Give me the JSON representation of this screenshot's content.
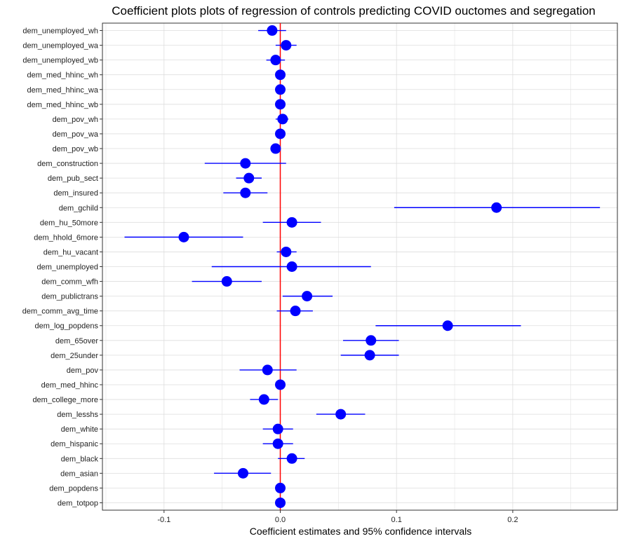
{
  "chart_data": {
    "type": "scatter",
    "title": "Coefficient plots plots of regression of controls predicting COVID ouctomes and segregation",
    "xlabel": "Coefficient estimates and 95% confidence intervals",
    "ylabel": "",
    "xlim": [
      -0.153,
      0.29
    ],
    "x_ticks": [
      -0.1,
      0.0,
      0.1,
      0.2
    ],
    "x_tick_labels": [
      "-0.1",
      "0.0",
      "0.1",
      "0.2"
    ],
    "reference_line": {
      "x": 0,
      "color": "#ff0000"
    },
    "grid": true,
    "colors": {
      "point": "#0000ff",
      "interval": "#0000ff",
      "reference": "#ff0000",
      "grid": "#dddddd",
      "border": "#333333"
    },
    "categories": [
      "dem_unemployed_wh",
      "dem_unemployed_wa",
      "dem_unemployed_wb",
      "dem_med_hhinc_wh",
      "dem_med_hhinc_wa",
      "dem_med_hhinc_wb",
      "dem_pov_wh",
      "dem_pov_wa",
      "dem_pov_wb",
      "dem_construction",
      "dem_pub_sect",
      "dem_insured",
      "dem_gchild",
      "dem_hu_50more",
      "dem_hhold_6more",
      "dem_hu_vacant",
      "dem_unemployed",
      "dem_comm_wfh",
      "dem_publictrans",
      "dem_comm_avg_time",
      "dem_log_popdens",
      "dem_65over",
      "dem_25under",
      "dem_pov",
      "dem_med_hhinc",
      "dem_college_more",
      "dem_lesshs",
      "dem_white",
      "dem_hispanic",
      "dem_black",
      "dem_asian",
      "dem_popdens",
      "dem_totpop"
    ],
    "estimates": [
      -0.007,
      0.005,
      -0.004,
      0.0,
      0.0,
      0.0,
      0.002,
      0.0,
      -0.004,
      -0.03,
      -0.027,
      -0.03,
      0.186,
      0.01,
      -0.083,
      0.005,
      0.01,
      -0.046,
      0.023,
      0.013,
      0.144,
      0.078,
      0.077,
      -0.011,
      0.0,
      -0.014,
      0.052,
      -0.002,
      -0.002,
      0.01,
      -0.032,
      0.0,
      0.0
    ],
    "ci_low": [
      -0.019,
      -0.004,
      -0.012,
      -0.002,
      -0.002,
      -0.002,
      -0.004,
      -0.002,
      -0.007,
      -0.065,
      -0.038,
      -0.049,
      0.098,
      -0.015,
      -0.134,
      -0.003,
      -0.059,
      -0.076,
      0.002,
      -0.003,
      0.082,
      0.054,
      0.052,
      -0.035,
      -0.002,
      -0.026,
      0.031,
      -0.015,
      -0.015,
      -0.002,
      -0.057,
      -0.002,
      -0.002
    ],
    "ci_high": [
      0.005,
      0.014,
      0.004,
      0.002,
      0.002,
      0.002,
      0.007,
      0.002,
      -0.001,
      0.005,
      -0.016,
      -0.011,
      0.275,
      0.035,
      -0.032,
      0.014,
      0.078,
      -0.016,
      0.045,
      0.028,
      0.207,
      0.102,
      0.102,
      0.014,
      0.002,
      -0.002,
      0.073,
      0.011,
      0.011,
      0.021,
      -0.008,
      0.002,
      0.002
    ]
  }
}
